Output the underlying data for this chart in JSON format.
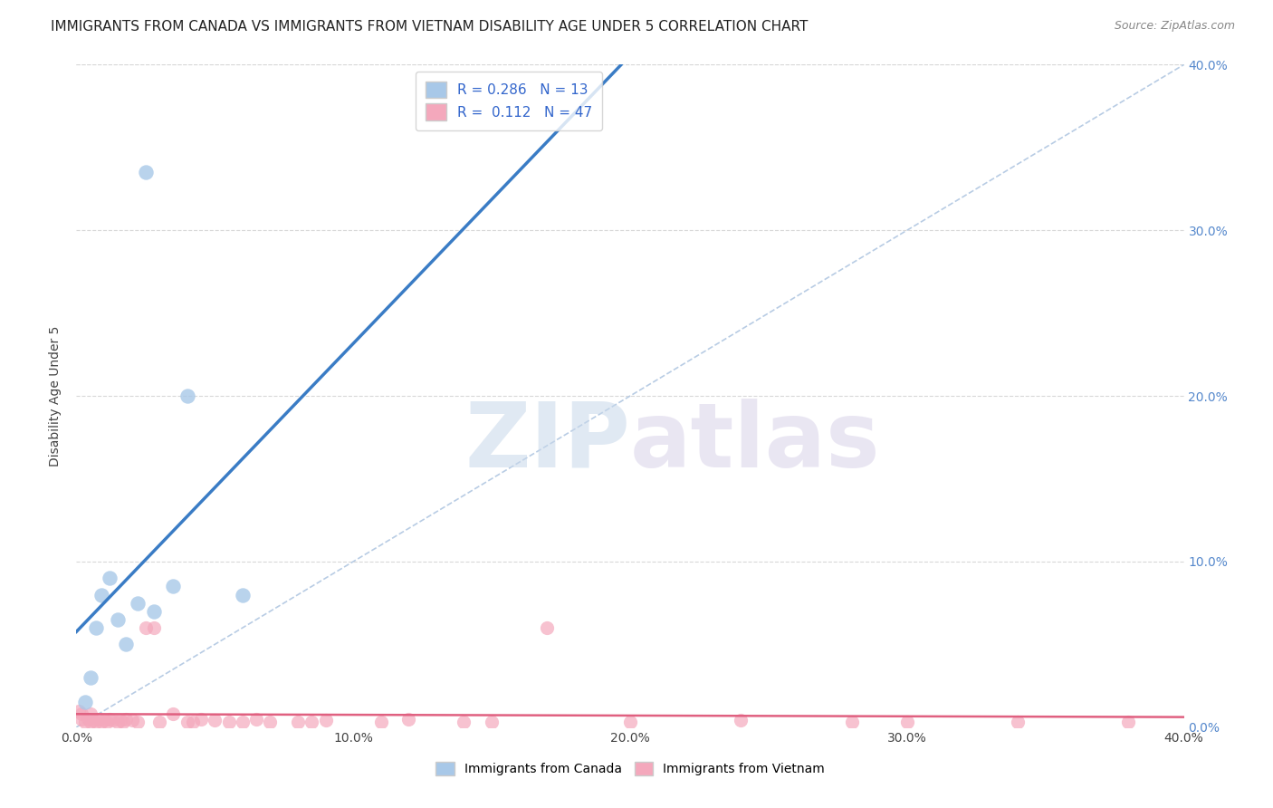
{
  "title": "IMMIGRANTS FROM CANADA VS IMMIGRANTS FROM VIETNAM DISABILITY AGE UNDER 5 CORRELATION CHART",
  "source": "Source: ZipAtlas.com",
  "ylabel": "Disability Age Under 5",
  "xlim": [
    0.0,
    0.4
  ],
  "ylim": [
    0.0,
    0.4
  ],
  "xtick_labels": [
    "0.0%",
    "",
    "10.0%",
    "",
    "20.0%",
    "",
    "30.0%",
    "",
    "40.0%"
  ],
  "xtick_vals": [
    0.0,
    0.05,
    0.1,
    0.15,
    0.2,
    0.25,
    0.3,
    0.35,
    0.4
  ],
  "ytick_labels_right": [
    "0.0%",
    "10.0%",
    "20.0%",
    "30.0%",
    "40.0%"
  ],
  "ytick_vals": [
    0.0,
    0.1,
    0.2,
    0.3,
    0.4
  ],
  "canada_R": 0.286,
  "canada_N": 13,
  "vietnam_R": 0.112,
  "vietnam_N": 47,
  "canada_color": "#a8c8e8",
  "vietnam_color": "#f4a8bc",
  "canada_line_color": "#3a7cc5",
  "vietnam_line_color": "#e06080",
  "diagonal_color": "#b8cce4",
  "background_color": "#ffffff",
  "grid_color": "#d8d8d8",
  "canada_x": [
    0.003,
    0.005,
    0.007,
    0.009,
    0.012,
    0.015,
    0.018,
    0.022,
    0.025,
    0.028,
    0.035,
    0.04,
    0.06
  ],
  "canada_y": [
    0.015,
    0.03,
    0.06,
    0.08,
    0.09,
    0.065,
    0.05,
    0.075,
    0.335,
    0.07,
    0.085,
    0.2,
    0.08
  ],
  "vietnam_x": [
    0.001,
    0.002,
    0.002,
    0.003,
    0.004,
    0.005,
    0.005,
    0.006,
    0.007,
    0.008,
    0.009,
    0.01,
    0.011,
    0.012,
    0.013,
    0.015,
    0.016,
    0.017,
    0.018,
    0.02,
    0.022,
    0.025,
    0.028,
    0.03,
    0.035,
    0.04,
    0.042,
    0.045,
    0.05,
    0.055,
    0.06,
    0.065,
    0.07,
    0.08,
    0.085,
    0.09,
    0.11,
    0.12,
    0.14,
    0.15,
    0.17,
    0.2,
    0.24,
    0.28,
    0.3,
    0.34,
    0.38
  ],
  "vietnam_y": [
    0.01,
    0.008,
    0.005,
    0.003,
    0.005,
    0.008,
    0.003,
    0.004,
    0.003,
    0.005,
    0.003,
    0.004,
    0.003,
    0.005,
    0.004,
    0.003,
    0.004,
    0.003,
    0.005,
    0.004,
    0.003,
    0.06,
    0.06,
    0.003,
    0.008,
    0.003,
    0.003,
    0.005,
    0.004,
    0.003,
    0.003,
    0.005,
    0.003,
    0.003,
    0.003,
    0.004,
    0.003,
    0.005,
    0.003,
    0.003,
    0.06,
    0.003,
    0.004,
    0.003,
    0.003,
    0.003,
    0.003
  ],
  "watermark_zip": "ZIP",
  "watermark_atlas": "atlas",
  "title_fontsize": 11,
  "label_fontsize": 10,
  "tick_fontsize": 10,
  "legend_fontsize": 11,
  "source_fontsize": 9
}
